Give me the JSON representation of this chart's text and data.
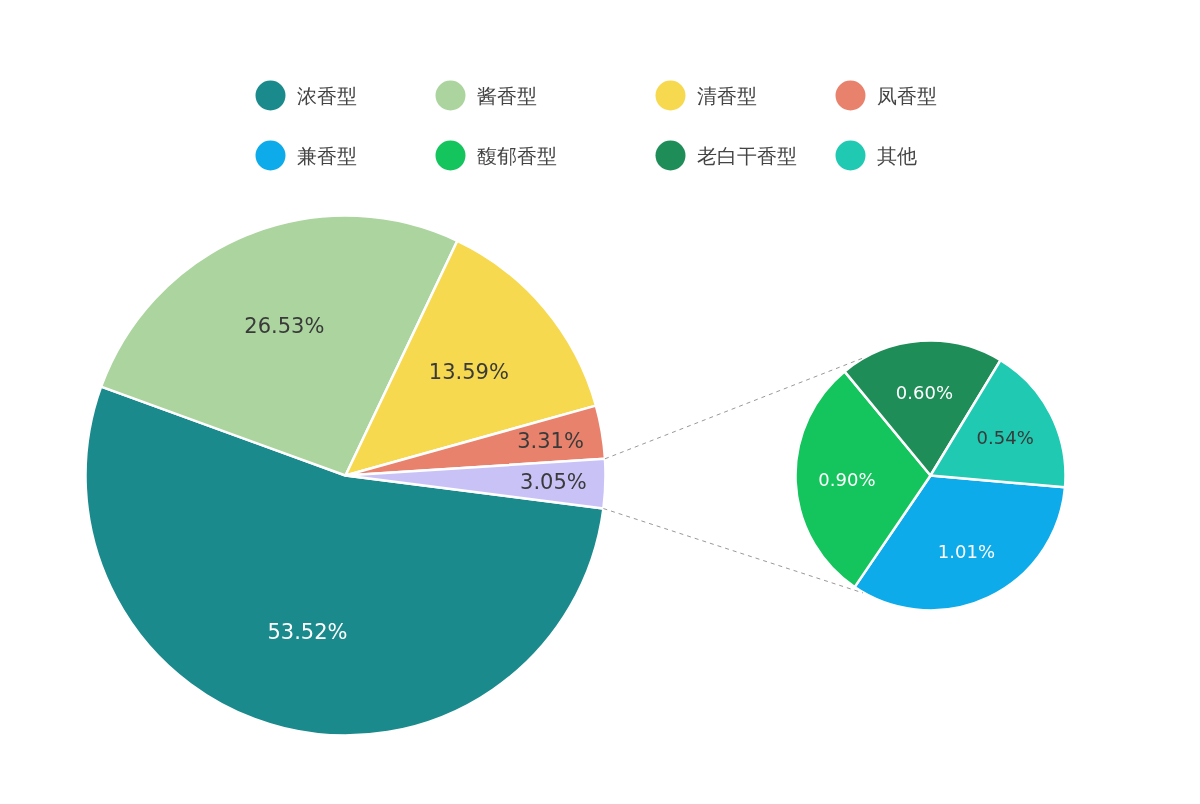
{
  "chart_data": [
    {
      "type": "pie",
      "categories": [
        "浓香型",
        "酱香型",
        "清香型",
        "凤香型",
        null
      ],
      "values": [
        53.52,
        26.53,
        13.59,
        3.31,
        3.05
      ],
      "colors": [
        "#1b8a8c",
        "#acd49f",
        "#f6d94f",
        "#e9826c",
        "#c9c2f7"
      ],
      "value_labels": [
        "53.52%",
        "26.53%",
        "13.59%",
        "3.31%",
        "3.05%"
      ],
      "legend": "top"
    },
    {
      "type": "pie",
      "categories": [
        "兼香型",
        "馥郁香型",
        "老白干香型",
        "其他"
      ],
      "values": [
        1.01,
        0.9,
        0.6,
        0.54
      ],
      "colors": [
        "#0dabea",
        "#14c45c",
        "#1f8d58",
        "#1fc9b2"
      ],
      "value_labels": [
        "1.01%",
        "0.90%",
        "0.60%",
        "0.54%"
      ],
      "legend": "top"
    }
  ]
}
